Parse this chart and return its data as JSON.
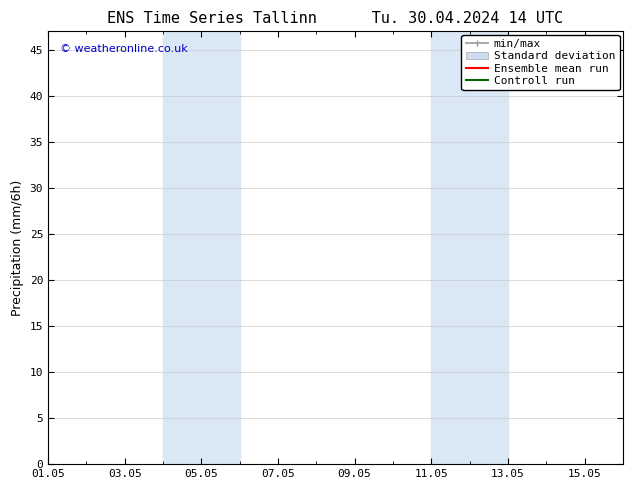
{
  "title": "ENS Time Series Tallinn      Tu. 30.04.2024 14 UTC",
  "ylabel": "Precipitation (mm/6h)",
  "xlabel": "",
  "ylim": [
    0,
    47
  ],
  "yticks": [
    0,
    5,
    10,
    15,
    20,
    25,
    30,
    35,
    40,
    45
  ],
  "xtick_labels": [
    "01.05",
    "03.05",
    "05.05",
    "07.05",
    "09.05",
    "11.05",
    "13.05",
    "15.05"
  ],
  "xtick_positions": [
    0,
    2,
    4,
    6,
    8,
    10,
    12,
    14
  ],
  "xlim": [
    0,
    15
  ],
  "shaded_bands": [
    {
      "x_start": 3.0,
      "x_end": 5.0
    },
    {
      "x_start": 10.0,
      "x_end": 12.0
    }
  ],
  "shaded_color": "#dae8f5",
  "background_color": "#ffffff",
  "watermark_text": "© weatheronline.co.uk",
  "watermark_color": "#0000cc",
  "legend_items": [
    {
      "label": "min/max",
      "color": "#999999",
      "linestyle": "-",
      "linewidth": 1.2
    },
    {
      "label": "Standard deviation",
      "color": "#ccddee",
      "linestyle": "-",
      "linewidth": 6
    },
    {
      "label": "Ensemble mean run",
      "color": "#ff0000",
      "linestyle": "-",
      "linewidth": 1.5
    },
    {
      "label": "Controll run",
      "color": "#006600",
      "linestyle": "-",
      "linewidth": 1.5
    }
  ],
  "spine_color": "#000000",
  "tick_color": "#000000",
  "title_fontsize": 11,
  "axis_label_fontsize": 9,
  "tick_fontsize": 8,
  "legend_fontsize": 8
}
